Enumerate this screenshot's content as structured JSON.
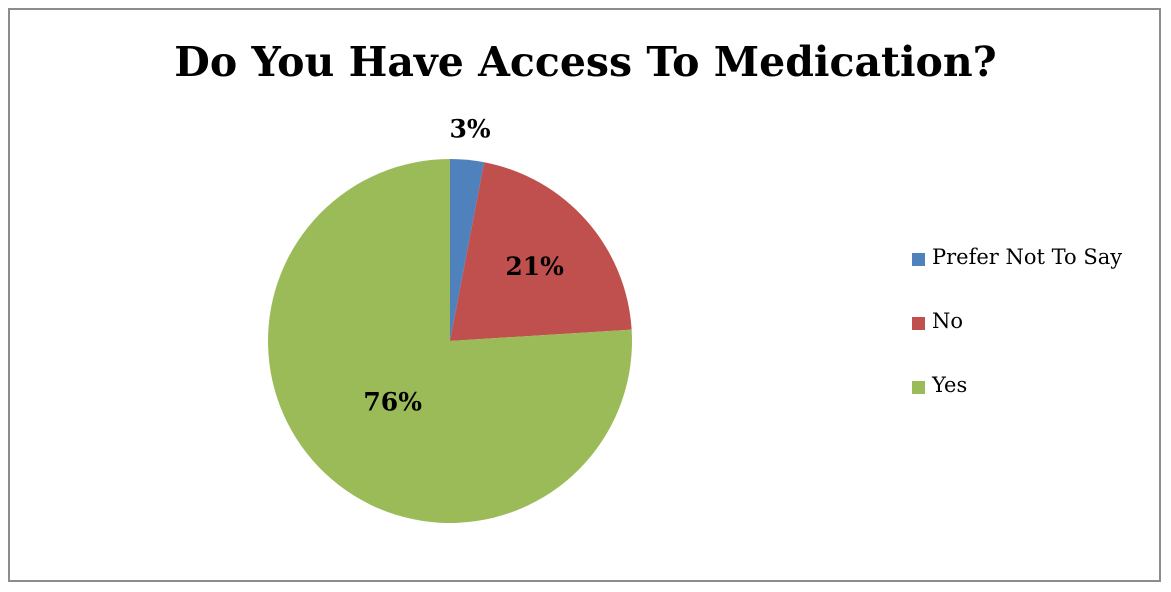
{
  "chart_data": {
    "type": "pie",
    "title": "Do You Have Access To Medication?",
    "slices": [
      {
        "name": "Prefer Not To Say",
        "value": 3,
        "label": "3%",
        "color": "#4f81bd"
      },
      {
        "name": "No",
        "value": 21,
        "label": "21%",
        "color": "#c0504d"
      },
      {
        "name": "Yes",
        "value": 76,
        "label": "76%",
        "color": "#9bbb59"
      }
    ],
    "legend_position": "right"
  }
}
